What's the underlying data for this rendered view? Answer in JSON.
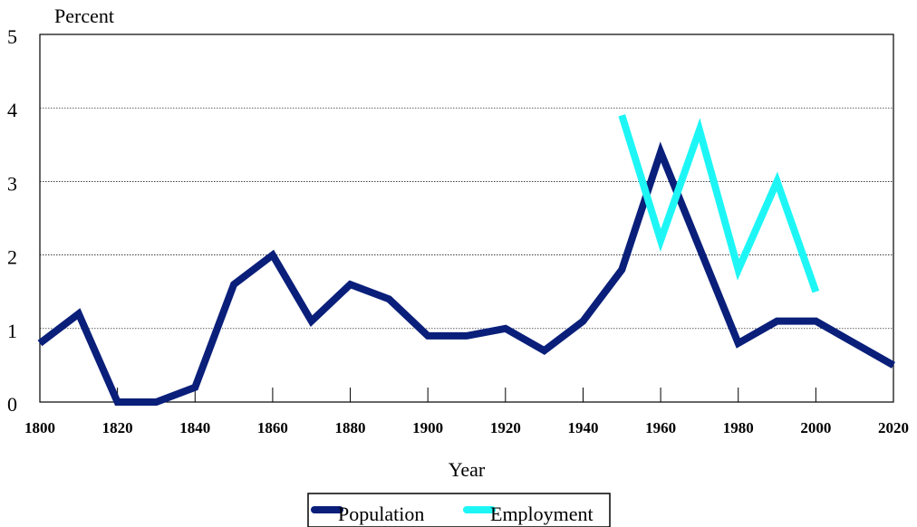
{
  "chart_data": {
    "type": "line",
    "y_label": "Percent",
    "x_label": "Year",
    "x": [
      1800,
      1810,
      1820,
      1830,
      1840,
      1850,
      1860,
      1870,
      1880,
      1890,
      1900,
      1910,
      1920,
      1930,
      1940,
      1950,
      1960,
      1970,
      1980,
      1990,
      2000,
      2010,
      2020
    ],
    "series": [
      {
        "name": "Population",
        "color": "#0a1f7a",
        "values": [
          0.8,
          1.2,
          0,
          0,
          0.2,
          1.6,
          2.0,
          1.1,
          1.6,
          1.4,
          0.9,
          0.9,
          1.0,
          0.7,
          1.1,
          1.8,
          3.4,
          2.1,
          0.8,
          1.1,
          1.1,
          0.8,
          0.5
        ]
      },
      {
        "name": "Employment",
        "color": "#1ef6f6",
        "values": [
          null,
          null,
          null,
          null,
          null,
          null,
          null,
          null,
          null,
          null,
          null,
          null,
          null,
          null,
          null,
          3.9,
          2.2,
          3.7,
          1.8,
          3.0,
          1.5,
          null,
          null
        ]
      }
    ],
    "xlim": [
      1800,
      2020
    ],
    "ylim": [
      0,
      5
    ],
    "xticks": [
      1800,
      1820,
      1840,
      1860,
      1880,
      1900,
      1920,
      1940,
      1960,
      1980,
      2000,
      2020
    ],
    "yticks": [
      0,
      1,
      2,
      3,
      4,
      5
    ],
    "grid": true
  }
}
